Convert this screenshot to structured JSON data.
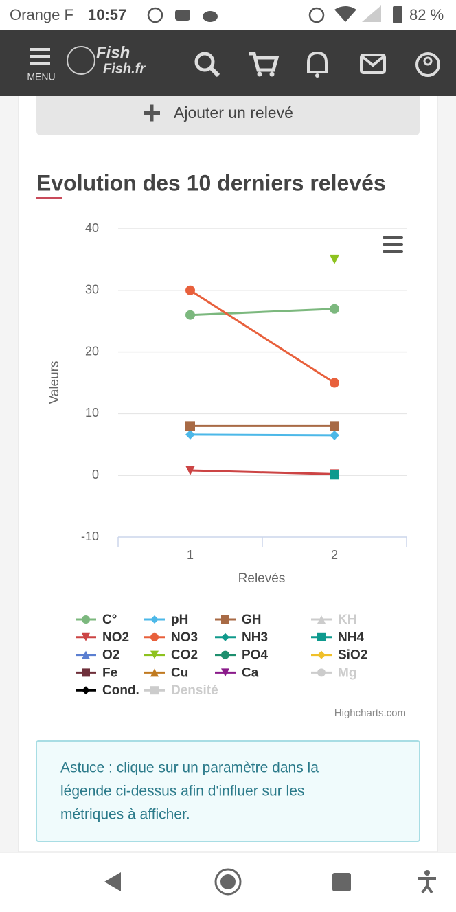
{
  "status_bar": {
    "carrier": "Orange F",
    "time": "10:57",
    "battery": "82 %"
  },
  "header": {
    "menu": "MENU",
    "logo": [
      "Fish",
      "Fish.fr"
    ]
  },
  "add_button": "Ajouter un relevé",
  "section_title": "Evolution des 10 derniers relevés",
  "chart_data": {
    "type": "line",
    "categories": [
      "1",
      "2"
    ],
    "xlabel": "Relevés",
    "ylabel": "Valeurs",
    "ylim": [
      -10,
      40
    ],
    "yticks": [
      -10,
      0,
      10,
      20,
      30,
      40
    ],
    "grid": true,
    "credits": "Highcharts.com",
    "series": [
      {
        "name": "C°",
        "color": "#7cb87e",
        "marker": "circle",
        "values": [
          26,
          27
        ]
      },
      {
        "name": "pH",
        "color": "#4cb8e8",
        "marker": "diamond",
        "values": [
          6.6,
          6.5
        ]
      },
      {
        "name": "GH",
        "color": "#a86a45",
        "marker": "square",
        "values": [
          8,
          8
        ]
      },
      {
        "name": "KH",
        "color": "#cccccc",
        "marker": "triangle",
        "visible": false,
        "values": [
          null,
          null
        ]
      },
      {
        "name": "NO2",
        "color": "#cc4444",
        "marker": "triangle-down",
        "values": [
          0.8,
          0.2
        ]
      },
      {
        "name": "NO3",
        "color": "#e8603c",
        "marker": "circle",
        "values": [
          30,
          15
        ]
      },
      {
        "name": "NH3",
        "color": "#109a8c",
        "marker": "diamond",
        "values": [
          null,
          null
        ]
      },
      {
        "name": "NH4",
        "color": "#0e9a8e",
        "marker": "square",
        "values": [
          null,
          0.1
        ]
      },
      {
        "name": "O2",
        "color": "#5b7fd1",
        "marker": "triangle",
        "values": [
          null,
          null
        ]
      },
      {
        "name": "CO2",
        "color": "#8dc21f",
        "marker": "triangle-down",
        "values": [
          null,
          35
        ]
      },
      {
        "name": "PO4",
        "color": "#1e8f6e",
        "marker": "circle",
        "values": [
          null,
          null
        ]
      },
      {
        "name": "SiO2",
        "color": "#f0c02a",
        "marker": "diamond",
        "values": [
          null,
          null
        ]
      },
      {
        "name": "Fe",
        "color": "#6e2f3a",
        "marker": "square",
        "values": [
          null,
          null
        ]
      },
      {
        "name": "Cu",
        "color": "#c07a20",
        "marker": "triangle",
        "values": [
          null,
          null
        ]
      },
      {
        "name": "Ca",
        "color": "#8a1a8a",
        "marker": "triangle-down",
        "values": [
          null,
          null
        ]
      },
      {
        "name": "Mg",
        "color": "#cccccc",
        "marker": "circle",
        "visible": false,
        "values": [
          null,
          null
        ]
      },
      {
        "name": "Cond.",
        "color": "#000000",
        "marker": "diamond",
        "values": [
          null,
          null
        ]
      },
      {
        "name": "Densité",
        "color": "#cccccc",
        "marker": "square",
        "visible": false,
        "values": [
          null,
          null
        ]
      }
    ]
  },
  "tip": [
    "Astuce : clique sur un paramètre dans la",
    "légende ci-dessus afin d'influer sur les",
    "métriques à afficher."
  ]
}
